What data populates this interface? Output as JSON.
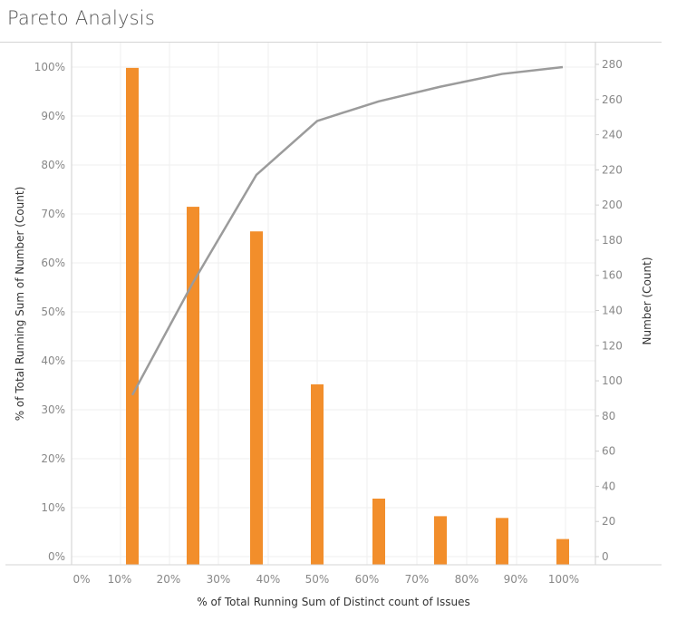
{
  "header": {
    "title": "Pareto Analysis"
  },
  "chart_data": {
    "type": "bar+line",
    "title": "Pareto Analysis",
    "xlabel": "% of Total Running Sum of Distinct count of Issues",
    "ylabel_left": "% of Total Running Sum of Number (Count)",
    "ylabel_right": "Number (Count)",
    "x_ticks": [
      "0%",
      "10%",
      "20%",
      "30%",
      "40%",
      "50%",
      "60%",
      "70%",
      "80%",
      "90%",
      "100%"
    ],
    "y_left_ticks": [
      "0%",
      "10%",
      "20%",
      "30%",
      "40%",
      "50%",
      "60%",
      "70%",
      "80%",
      "90%",
      "100%"
    ],
    "y_right_ticks": [
      "0",
      "20",
      "40",
      "60",
      "80",
      "100",
      "120",
      "140",
      "160",
      "180",
      "200",
      "220",
      "240",
      "260",
      "280"
    ],
    "ylim_left": [
      0,
      1.0
    ],
    "ylim_right": [
      0,
      280
    ],
    "grid": true,
    "x": [
      0.125,
      0.25,
      0.375,
      0.5,
      0.625,
      0.75,
      0.875,
      1.0
    ],
    "series": [
      {
        "name": "Number (Count)",
        "type": "bar",
        "axis": "right",
        "color": "#f28e2b",
        "values": [
          278,
          199,
          185,
          98,
          33,
          23,
          22,
          10
        ]
      },
      {
        "name": "% of Total Running Sum of Number (Count)",
        "type": "line",
        "axis": "left",
        "color": "#9b9b9b",
        "values": [
          0.33,
          0.56,
          0.78,
          0.89,
          0.93,
          0.96,
          0.986,
          1.0
        ]
      }
    ]
  }
}
